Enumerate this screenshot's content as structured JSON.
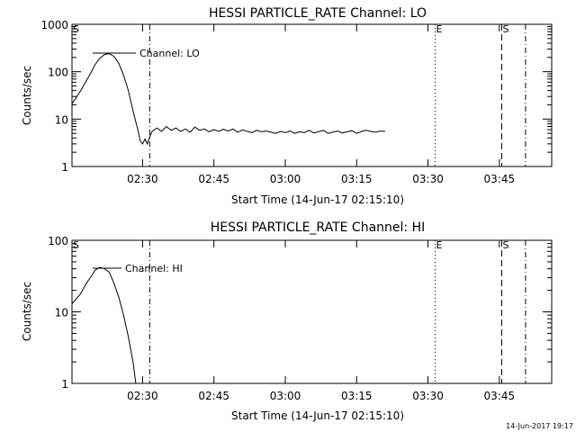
{
  "footer": {
    "timestamp": "14-Jun-2017 19:17"
  },
  "chart_data": [
    {
      "type": "line",
      "title": "HESSI PARTICLE_RATE Channel: LO",
      "xlabel": "Start Time (14-Jun-17 02:15:10)",
      "ylabel": "Counts/sec",
      "yscale": "log",
      "ylim": [
        1,
        1000
      ],
      "xlim": [
        "02:15:10",
        "03:56:00"
      ],
      "x_ticks": [
        "02:30",
        "02:45",
        "03:00",
        "03:15",
        "03:30",
        "03:45"
      ],
      "y_ticks": [
        "1",
        "10",
        "100",
        "1000"
      ],
      "legend": "Channel: LO",
      "series": [
        {
          "name": "Channel: LO",
          "x": [
            "02:15:10",
            "02:16:00",
            "02:17:00",
            "02:18:00",
            "02:19:00",
            "02:20:00",
            "02:21:00",
            "02:22:00",
            "02:23:00",
            "02:24:00",
            "02:25:00",
            "02:26:00",
            "02:27:00",
            "02:28:00",
            "02:29:00",
            "02:29:30",
            "02:30:00",
            "02:30:30",
            "02:31:00",
            "02:31:30",
            "02:32:00",
            "02:33:00",
            "02:34:00",
            "02:35:00",
            "02:36:00",
            "02:37:00",
            "02:38:00",
            "02:39:00",
            "02:40:00",
            "02:41:00",
            "02:42:00",
            "02:43:00",
            "02:44:00",
            "02:45:00",
            "02:46:00",
            "02:47:00",
            "02:48:00",
            "02:49:00",
            "02:50:00",
            "02:51:00",
            "02:52:00",
            "02:53:00",
            "02:54:00",
            "02:55:00",
            "02:56:00",
            "02:57:00",
            "02:58:00",
            "02:59:00",
            "03:00:00",
            "03:01:00",
            "03:02:00",
            "03:03:00",
            "03:04:00",
            "03:05:00",
            "03:06:00",
            "03:07:00",
            "03:08:00",
            "03:09:00",
            "03:10:00",
            "03:11:00",
            "03:12:00",
            "03:13:00",
            "03:14:00",
            "03:15:00",
            "03:16:00",
            "03:17:00",
            "03:18:00",
            "03:19:00",
            "03:20:00",
            "03:21:00"
          ],
          "y": [
            21,
            28,
            40,
            60,
            90,
            140,
            190,
            230,
            240,
            210,
            150,
            85,
            40,
            15,
            6,
            3.5,
            3,
            3.8,
            3,
            4.2,
            5.5,
            6.5,
            5.5,
            7,
            5.8,
            6.5,
            5.5,
            6.2,
            5.3,
            6.8,
            5.8,
            6.2,
            5.4,
            6,
            5.5,
            6.1,
            5.6,
            6.2,
            5.3,
            5.9,
            5.5,
            5.2,
            5.8,
            5.4,
            5.6,
            5.3,
            5,
            5.5,
            5.2,
            5.6,
            5,
            5.4,
            5.2,
            5.8,
            5.1,
            5.4,
            5.8,
            5,
            5.3,
            5.6,
            5.1,
            5.4,
            5.7,
            5,
            5.5,
            5.8,
            5.5,
            5.3,
            5.6,
            5.5
          ]
        }
      ],
      "vlines": [
        {
          "x": "02:15:10",
          "label": "S",
          "style": "solid"
        },
        {
          "x": "02:31:30",
          "label": "",
          "style": "dashdot"
        },
        {
          "x": "03:31:30",
          "label": "E",
          "style": "dotted"
        },
        {
          "x": "03:45:30",
          "label": "S",
          "style": "dashed"
        },
        {
          "x": "03:50:30",
          "label": "",
          "style": "dashdot"
        }
      ]
    },
    {
      "type": "line",
      "title": "HESSI PARTICLE_RATE Channel: HI",
      "xlabel": "Start Time (14-Jun-17 02:15:10)",
      "ylabel": "Counts/sec",
      "yscale": "log",
      "ylim": [
        1,
        100
      ],
      "xlim": [
        "02:15:10",
        "03:56:00"
      ],
      "x_ticks": [
        "02:30",
        "02:45",
        "03:00",
        "03:15",
        "03:30",
        "03:45"
      ],
      "y_ticks": [
        "1",
        "10",
        "100"
      ],
      "legend": "Channel: HI",
      "series": [
        {
          "name": "Channel: HI",
          "x": [
            "02:15:10",
            "02:16:00",
            "02:17:00",
            "02:18:00",
            "02:19:00",
            "02:20:00",
            "02:21:00",
            "02:22:00",
            "02:23:00",
            "02:24:00",
            "02:25:00",
            "02:26:00",
            "02:27:00",
            "02:28:00",
            "02:28:40"
          ],
          "y": [
            13,
            15,
            18,
            24,
            30,
            38,
            42,
            40,
            36,
            25,
            16,
            9,
            4.5,
            2,
            0.9
          ]
        }
      ],
      "vlines": [
        {
          "x": "02:15:10",
          "label": "S",
          "style": "solid"
        },
        {
          "x": "02:31:30",
          "label": "",
          "style": "dashdot"
        },
        {
          "x": "03:31:30",
          "label": "E",
          "style": "dotted"
        },
        {
          "x": "03:45:30",
          "label": "S",
          "style": "dashed"
        },
        {
          "x": "03:50:30",
          "label": "",
          "style": "dashdot"
        }
      ]
    }
  ]
}
